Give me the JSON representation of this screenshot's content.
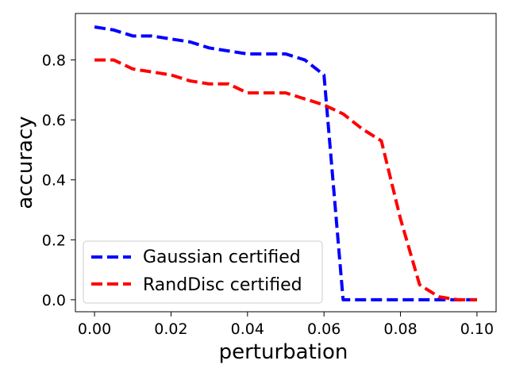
{
  "chart_data": {
    "type": "line",
    "title": "",
    "xlabel": "perturbation",
    "ylabel": "accuracy",
    "xlim": [
      -0.005,
      0.105
    ],
    "ylim": [
      -0.04,
      0.955
    ],
    "xticks": [
      0.0,
      0.02,
      0.04,
      0.06,
      0.08,
      0.1
    ],
    "xtick_labels": [
      "0.00",
      "0.02",
      "0.04",
      "0.06",
      "0.08",
      "0.10"
    ],
    "yticks": [
      0.0,
      0.2,
      0.4,
      0.6,
      0.8
    ],
    "ytick_labels": [
      "0.0",
      "0.2",
      "0.4",
      "0.6",
      "0.8"
    ],
    "grid": false,
    "legend_position": "lower-left",
    "series": [
      {
        "name": "Gaussian certified",
        "color": "#0000ff",
        "style": "dashed",
        "x": [
          0.0,
          0.005,
          0.01,
          0.015,
          0.02,
          0.025,
          0.03,
          0.035,
          0.04,
          0.045,
          0.05,
          0.055,
          0.06,
          0.065,
          0.07,
          0.075,
          0.08,
          0.085,
          0.09,
          0.095,
          0.1
        ],
        "y": [
          0.91,
          0.9,
          0.88,
          0.88,
          0.87,
          0.86,
          0.84,
          0.83,
          0.82,
          0.82,
          0.82,
          0.8,
          0.75,
          0.0,
          0.0,
          0.0,
          0.0,
          0.0,
          0.0,
          0.0,
          0.0
        ]
      },
      {
        "name": "RandDisc certified",
        "color": "#ff0000",
        "style": "dashed",
        "x": [
          0.0,
          0.005,
          0.01,
          0.015,
          0.02,
          0.025,
          0.03,
          0.035,
          0.04,
          0.045,
          0.05,
          0.055,
          0.06,
          0.065,
          0.07,
          0.075,
          0.08,
          0.085,
          0.09,
          0.095,
          0.1
        ],
        "y": [
          0.8,
          0.8,
          0.77,
          0.76,
          0.75,
          0.73,
          0.72,
          0.72,
          0.69,
          0.69,
          0.69,
          0.67,
          0.65,
          0.62,
          0.57,
          0.53,
          0.27,
          0.05,
          0.01,
          0.0,
          0.0
        ]
      }
    ]
  }
}
